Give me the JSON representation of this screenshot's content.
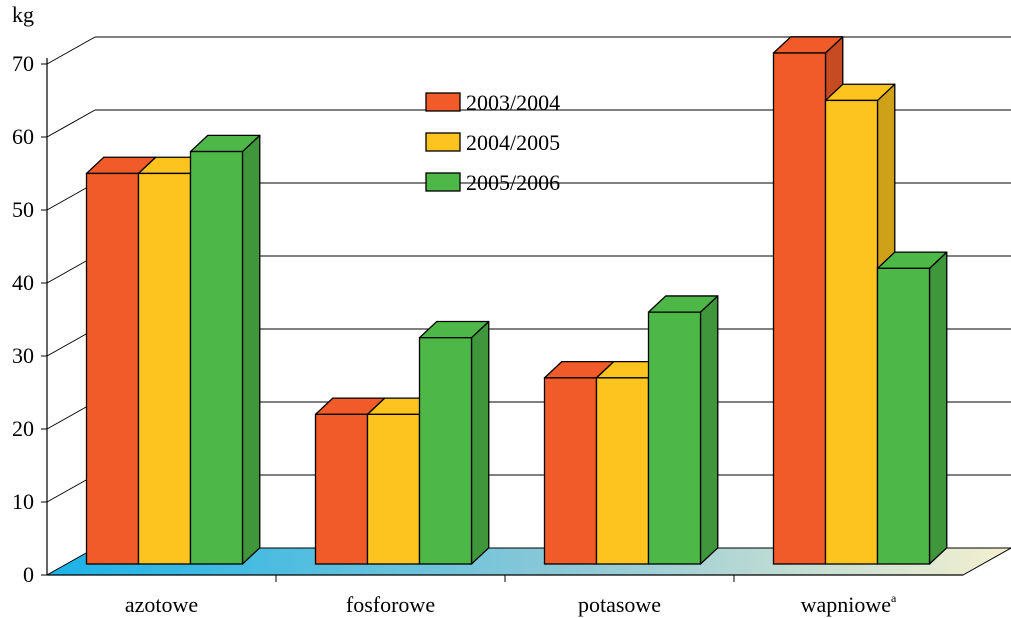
{
  "chart_data": {
    "type": "bar",
    "ylabel": "kg",
    "ylim": [
      0,
      70
    ],
    "yticks": [
      0,
      10,
      20,
      30,
      40,
      50,
      60,
      70
    ],
    "grid": true,
    "legend_position": "top-center",
    "categories": [
      "azotowe",
      "fosforowe",
      "potasowe",
      "wapniowe"
    ],
    "category_superscripts": [
      "",
      "",
      "",
      "a"
    ],
    "series": [
      {
        "name": "2003/2004",
        "color": "#f15a29",
        "values": [
          53.5,
          20.5,
          25.5,
          70
        ]
      },
      {
        "name": "2004/2005",
        "color": "#fdc41f",
        "values": [
          53.5,
          20.5,
          25.5,
          63.5
        ]
      },
      {
        "name": "2005/2006",
        "color": "#4db748",
        "values": [
          56.5,
          31,
          34.5,
          40.5
        ]
      }
    ]
  }
}
